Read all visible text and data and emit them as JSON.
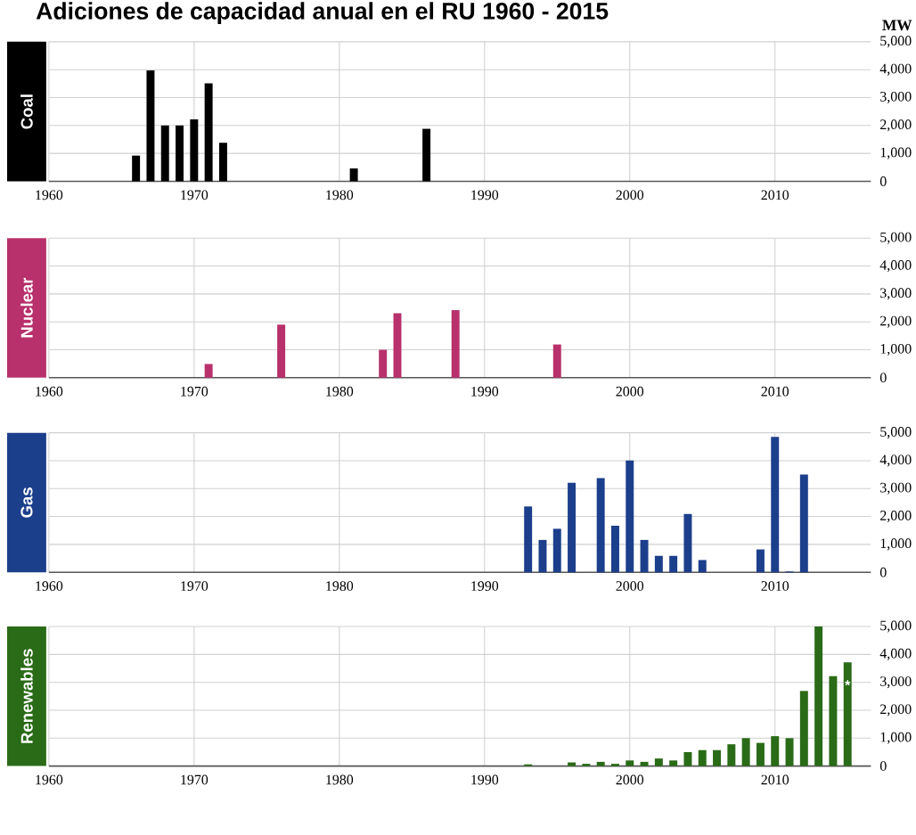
{
  "chart_data": [
    {
      "type": "bar",
      "title": "Adiciones de capacidad anual en el RU 1960 - 2015",
      "ylabel": "Coal",
      "annotations": [
        "MW"
      ],
      "grid": true,
      "xlim": [
        1960,
        2016.6
      ],
      "xticks": [
        1960,
        1970,
        1980,
        1990,
        2000,
        2010
      ],
      "ylim": [
        0,
        5000
      ],
      "yticks": [
        0,
        {
          "value": 1000,
          "label": "1,000"
        },
        {
          "value": 2000,
          "label": "2,000"
        },
        {
          "value": 3000,
          "label": "3,000"
        },
        {
          "value": 4000,
          "label": "4,000"
        },
        {
          "value": 5000,
          "label": "5,000"
        }
      ],
      "x": [
        1966,
        1967,
        1968,
        1969,
        1970,
        1971,
        1972,
        1981,
        1986
      ],
      "series": [
        {
          "color": "#000000",
          "values": [
            920,
            3970,
            2000,
            2000,
            2220,
            3510,
            1380,
            460,
            1880
          ]
        }
      ]
    },
    {
      "type": "bar",
      "ylabel": "Nuclear",
      "grid": true,
      "xlim": [
        1960,
        2016.6
      ],
      "xticks": [
        1960,
        1970,
        1980,
        1990,
        2000,
        2010
      ],
      "ylim": [
        0,
        5000
      ],
      "yticks": [
        0,
        {
          "value": 1000,
          "label": "1,000"
        },
        {
          "value": 2000,
          "label": "2,000"
        },
        {
          "value": 3000,
          "label": "3,000"
        },
        {
          "value": 4000,
          "label": "4,000"
        },
        {
          "value": 5000,
          "label": "5,000"
        }
      ],
      "x": [
        1971,
        1976,
        1983,
        1984,
        1988,
        1995
      ],
      "series": [
        {
          "color": "#b8306c",
          "values": [
            490,
            1900,
            1000,
            2310,
            2420,
            1190
          ]
        }
      ]
    },
    {
      "type": "bar",
      "ylabel": "Gas",
      "grid": true,
      "xlim": [
        1960,
        2016.6
      ],
      "xticks": [
        1960,
        1970,
        1980,
        1990,
        2000,
        2010
      ],
      "ylim": [
        0,
        5000
      ],
      "yticks": [
        0,
        {
          "value": 1000,
          "label": "1,000"
        },
        {
          "value": 2000,
          "label": "2,000"
        },
        {
          "value": 3000,
          "label": "3,000"
        },
        {
          "value": 4000,
          "label": "4,000"
        },
        {
          "value": 5000,
          "label": "5,000"
        }
      ],
      "x": [
        1993,
        1994,
        1995,
        1996,
        1998,
        1999,
        2000,
        2001,
        2002,
        2003,
        2004,
        2005,
        2009,
        2010,
        2011,
        2012
      ],
      "series": [
        {
          "color": "#1c3f8c",
          "values": [
            2360,
            1160,
            1560,
            3210,
            3380,
            1670,
            4010,
            1160,
            590,
            590,
            2090,
            440,
            820,
            4850,
            30,
            3500
          ]
        }
      ]
    },
    {
      "type": "bar",
      "ylabel": "Renewables",
      "grid": true,
      "annotations": [
        {
          "text": "*",
          "x": 2015,
          "y": 2900
        }
      ],
      "xlim": [
        1960,
        2016.6
      ],
      "xticks": [
        1960,
        1970,
        1980,
        1990,
        2000,
        2010
      ],
      "ylim": [
        0,
        5000
      ],
      "yticks": [
        0,
        {
          "value": 1000,
          "label": "1,000"
        },
        {
          "value": 2000,
          "label": "2,000"
        },
        {
          "value": 3000,
          "label": "3,000"
        },
        {
          "value": 4000,
          "label": "4,000"
        },
        {
          "value": 5000,
          "label": "5,000"
        }
      ],
      "x": [
        1993,
        1996,
        1997,
        1998,
        1999,
        2000,
        2001,
        2002,
        2003,
        2004,
        2005,
        2006,
        2007,
        2008,
        2009,
        2010,
        2011,
        2012,
        2013,
        2014,
        2015
      ],
      "series": [
        {
          "color": "#2a6b17",
          "values": [
            60,
            130,
            80,
            150,
            80,
            200,
            150,
            270,
            200,
            500,
            570,
            570,
            780,
            1000,
            830,
            1070,
            1000,
            2690,
            5000,
            3220,
            3720
          ]
        }
      ]
    }
  ]
}
